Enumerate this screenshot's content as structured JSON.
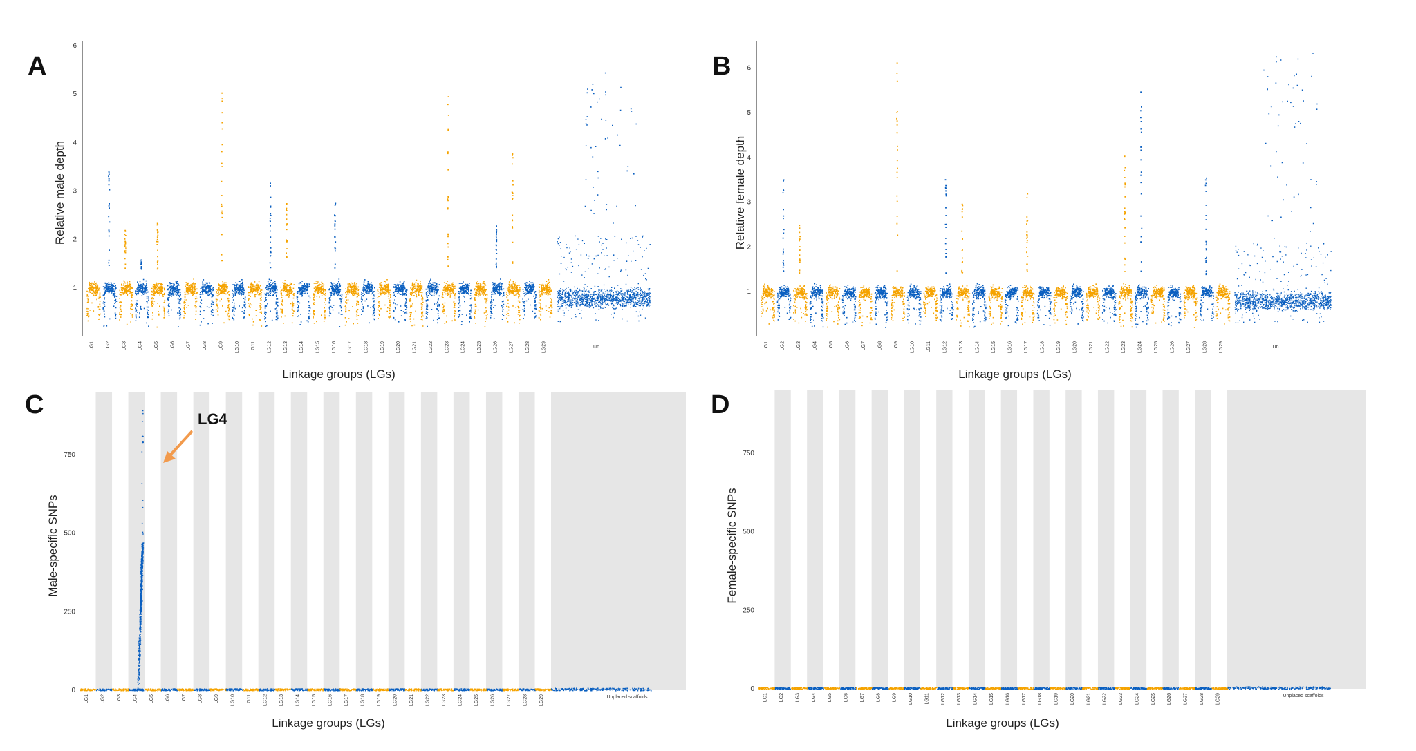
{
  "figure": {
    "colors": {
      "lg_odd": "#f5a300",
      "lg_even": "#0a5fc0",
      "band": "#e6e6e6",
      "arrow": "#f29a4c"
    }
  },
  "chart_data": [
    {
      "panel": "A",
      "type": "scatter",
      "ylabel": "Relative male depth",
      "xlabel": "Linkage groups (LGs)",
      "yticks": [
        1,
        2,
        3,
        4,
        5,
        6
      ],
      "ylim": [
        0,
        6
      ],
      "grid": false,
      "x_labels": [
        "LG1",
        "LG2",
        "LG3",
        "LG4",
        "LG5",
        "LG6",
        "LG7",
        "LG8",
        "LG9",
        "LG10",
        "LG11",
        "LG12",
        "LG13",
        "LG14",
        "LG15",
        "LG16",
        "LG17",
        "LG18",
        "LG19",
        "LG20",
        "LG21",
        "LG22",
        "LG23",
        "LG24",
        "LG25",
        "LG26",
        "LG27",
        "LG28",
        "LG29",
        "Un"
      ],
      "baseline": 1.0,
      "peaks": [
        {
          "group": "LG2",
          "value": 3.5
        },
        {
          "group": "LG3",
          "value": 2.2
        },
        {
          "group": "LG4",
          "value": 1.6
        },
        {
          "group": "LG5",
          "value": 2.4
        },
        {
          "group": "LG9",
          "value": 5.3
        },
        {
          "group": "LG12",
          "value": 3.2
        },
        {
          "group": "LG13",
          "value": 2.8
        },
        {
          "group": "LG16",
          "value": 2.8
        },
        {
          "group": "LG23",
          "value": 5.2
        },
        {
          "group": "LG26",
          "value": 2.3
        },
        {
          "group": "LG27",
          "value": 4.0
        },
        {
          "group": "Un",
          "value": 5.5
        }
      ]
    },
    {
      "panel": "B",
      "type": "scatter",
      "ylabel": "Relative female depth",
      "xlabel": "Linkage groups (LGs)",
      "yticks": [
        1,
        2,
        3,
        4,
        5,
        6
      ],
      "ylim": [
        0,
        6.5
      ],
      "grid": false,
      "x_labels": [
        "LG1",
        "LG2",
        "LG3",
        "LG4",
        "LG5",
        "LG6",
        "LG7",
        "LG8",
        "LG9",
        "LG10",
        "LG11",
        "LG12",
        "LG13",
        "LG14",
        "LG15",
        "LG16",
        "LG17",
        "LG18",
        "LG19",
        "LG20",
        "LG21",
        "LG22",
        "LG23",
        "LG24",
        "LG25",
        "LG26",
        "LG27",
        "LG28",
        "LG29",
        "Un"
      ],
      "baseline": 1.0,
      "peaks": [
        {
          "group": "LG2",
          "value": 3.6
        },
        {
          "group": "LG3",
          "value": 2.5
        },
        {
          "group": "LG9",
          "value": 6.2
        },
        {
          "group": "LG12",
          "value": 3.6
        },
        {
          "group": "LG13",
          "value": 3.1
        },
        {
          "group": "LG17",
          "value": 3.3
        },
        {
          "group": "LG23",
          "value": 4.2
        },
        {
          "group": "LG24",
          "value": 5.6
        },
        {
          "group": "LG28",
          "value": 3.6
        },
        {
          "group": "Un",
          "value": 6.5
        }
      ]
    },
    {
      "panel": "C",
      "type": "scatter",
      "ylabel": "Male-specific SNPs",
      "xlabel": "Linkage groups (LGs)",
      "yticks": [
        0,
        250,
        500,
        750
      ],
      "ylim": [
        0,
        950
      ],
      "grid": false,
      "x_labels": [
        "LG1",
        "LG2",
        "LG3",
        "LG4",
        "LG5",
        "LG6",
        "LG7",
        "LG8",
        "LG9",
        "LG10",
        "LG11",
        "LG12",
        "LG13",
        "LG14",
        "LG15",
        "LG16",
        "LG17",
        "LG18",
        "LG19",
        "LG20",
        "LG21",
        "LG22",
        "LG23",
        "LG24",
        "LG25",
        "LG26",
        "LG27",
        "LG28",
        "LG29",
        "Unplaced scaffolds"
      ],
      "peak": {
        "group": "LG4",
        "max": 900,
        "dense_max": 470
      },
      "annotation": "LG4"
    },
    {
      "panel": "D",
      "type": "scatter",
      "ylabel": "Female-specific SNPs",
      "xlabel": "Linkage groups (LGs)",
      "yticks": [
        0,
        250,
        500,
        750
      ],
      "ylim": [
        0,
        950
      ],
      "grid": false,
      "x_labels": [
        "LG1",
        "LG2",
        "LG3",
        "LG4",
        "LG5",
        "LG6",
        "LG7",
        "LG8",
        "LG9",
        "LG10",
        "LG11",
        "LG12",
        "LG13",
        "LG14",
        "LG15",
        "LG16",
        "LG17",
        "LG18",
        "LG19",
        "LG20",
        "LG21",
        "LG22",
        "LG23",
        "LG24",
        "LG25",
        "LG26",
        "LG27",
        "LG28",
        "LG29",
        "Unplaced scaffolds"
      ],
      "peak": null
    }
  ]
}
